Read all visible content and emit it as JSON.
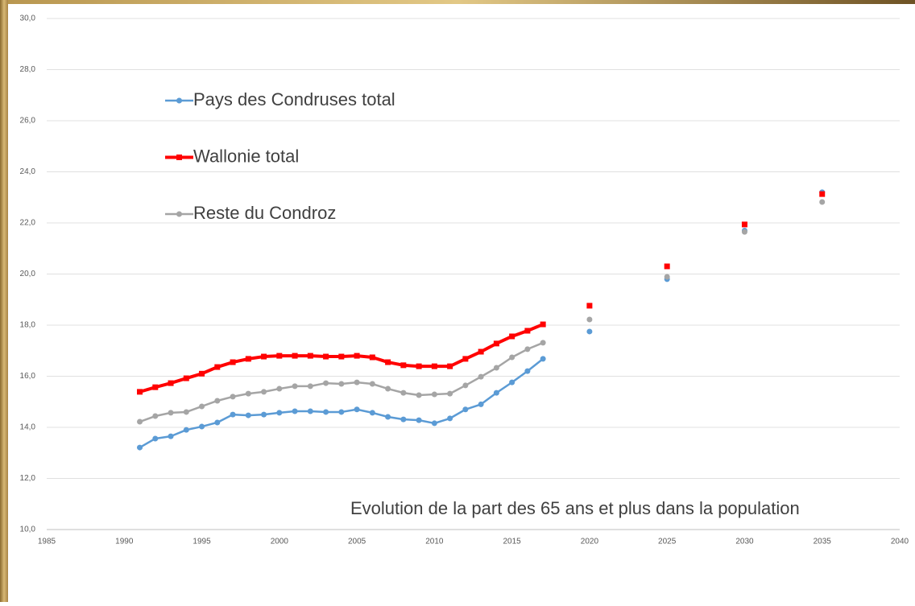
{
  "chart_data": {
    "type": "line",
    "annotation": "Evolution de la part des 65 ans et plus dans la population",
    "x": [
      1991,
      1992,
      1993,
      1994,
      1995,
      1996,
      1997,
      1998,
      1999,
      2000,
      2001,
      2002,
      2003,
      2004,
      2005,
      2006,
      2007,
      2008,
      2009,
      2010,
      2011,
      2012,
      2013,
      2014,
      2015,
      2016,
      2017,
      2020,
      2025,
      2030,
      2035
    ],
    "series": [
      {
        "name": "Pays des Condruses total",
        "color": "#5b9bd5",
        "marker": "circle",
        "values": [
          13.21,
          13.56,
          13.65,
          13.9,
          14.03,
          14.19,
          14.5,
          14.47,
          14.5,
          14.57,
          14.63,
          14.63,
          14.6,
          14.6,
          14.7,
          14.57,
          14.41,
          14.31,
          14.28,
          14.16,
          14.35,
          14.7,
          14.9,
          15.35,
          15.76,
          16.2,
          16.68,
          17.75,
          19.8,
          21.7,
          23.2
        ]
      },
      {
        "name": "Wallonie total",
        "color": "#ff0000",
        "marker": "square",
        "values": [
          15.39,
          15.57,
          15.73,
          15.92,
          16.1,
          16.36,
          16.55,
          16.68,
          16.77,
          16.8,
          16.8,
          16.8,
          16.77,
          16.77,
          16.8,
          16.74,
          16.55,
          16.43,
          16.39,
          16.39,
          16.39,
          16.68,
          16.96,
          17.28,
          17.56,
          17.78,
          18.03,
          18.76,
          20.3,
          21.94,
          23.13
        ]
      },
      {
        "name": "Reste du Condroz",
        "color": "#a5a5a5",
        "marker": "circle",
        "values": [
          14.22,
          14.44,
          14.57,
          14.6,
          14.82,
          15.04,
          15.2,
          15.32,
          15.39,
          15.51,
          15.61,
          15.61,
          15.73,
          15.7,
          15.76,
          15.7,
          15.51,
          15.35,
          15.26,
          15.29,
          15.32,
          15.64,
          15.98,
          16.33,
          16.74,
          17.06,
          17.31,
          18.22,
          19.89,
          21.65,
          22.82
        ]
      }
    ],
    "xlim": [
      1985,
      2040
    ],
    "xticks": [
      1985,
      1990,
      1995,
      2000,
      2005,
      2010,
      2015,
      2020,
      2025,
      2030,
      2035,
      2040
    ],
    "ylim": [
      10,
      30
    ],
    "yticks": [
      {
        "value": 10,
        "label": "10,0"
      },
      {
        "value": 12,
        "label": "12,0"
      },
      {
        "value": 14,
        "label": "14,0"
      },
      {
        "value": 16,
        "label": "16,0"
      },
      {
        "value": 18,
        "label": "18,0"
      },
      {
        "value": 20,
        "label": "20,0"
      },
      {
        "value": 22,
        "label": "22,0"
      },
      {
        "value": 24,
        "label": "24,0"
      },
      {
        "value": 26,
        "label": "26,0"
      },
      {
        "value": 28,
        "label": "28,0"
      },
      {
        "value": 30,
        "label": "30,0"
      }
    ],
    "grid": true
  }
}
